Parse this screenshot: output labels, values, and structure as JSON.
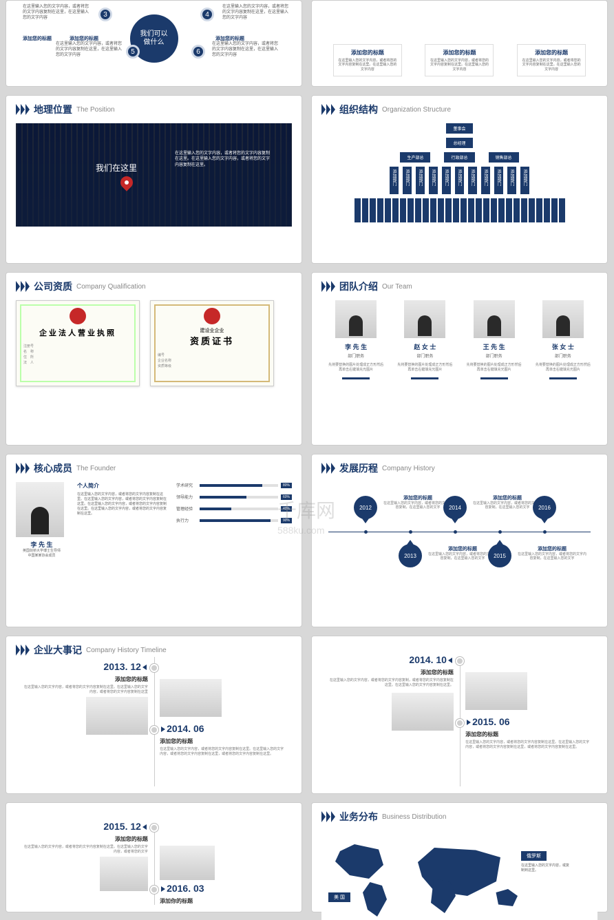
{
  "colors": {
    "primary": "#1b3a6b",
    "text": "#555",
    "muted": "#888",
    "bg": "#ffffff"
  },
  "watermark": {
    "main": "千库网",
    "sub": "588ku.com"
  },
  "s1": {
    "center": "我们可以\n做什么",
    "items": [
      {
        "n": "3",
        "title": "添加您的标题",
        "desc": "在这里输入您的文字内容，或者将您的文字内容复制在这里，在这里输入您的文字内容"
      },
      {
        "n": "4",
        "title": "",
        "desc": "在这里输入您的文字内容，或者将您的文字内容复制在这里，在这里输入您的文字内容"
      },
      {
        "n": "5",
        "title": "添加您的标题",
        "desc": "在这里输入您的文字内容，或者将您的文字内容复制在这里，在这里输入您的文字内容"
      },
      {
        "n": "6",
        "title": "添加您的标题",
        "desc": "在这里输入您的文字内容，或者将您的文字内容复制在这里，在这里输入您的文字内容"
      }
    ]
  },
  "s2": {
    "cards": [
      {
        "title": "添加您的标题",
        "desc": "在这里输入您的文字内容，或者将您的文字内容复制在这里。在这里输入您的文字内容"
      },
      {
        "title": "添加您的标题",
        "desc": "在这里输入您的文字内容，或者将您的文字内容复制在这里。在这里输入您的文字内容"
      },
      {
        "title": "添加您的标题",
        "desc": "在这里输入您的文字内容，或者将您的文字内容复制在这里。在这里输入您的文字内容"
      }
    ]
  },
  "s3": {
    "cn": "地理位置",
    "en": "The Position",
    "label": "我们在这里",
    "desc": "在这里输入您的文字内容，或者将您的文字内容复制在这里。在这里输入您的文字内容，或者将您的文字内容复制在这里。"
  },
  "s4": {
    "cn": "组织结构",
    "en": "Organization Structure",
    "top": "董事会",
    "l2": "总经理",
    "l3": [
      "生产部总",
      "行政部总",
      "销售部总"
    ],
    "dept": "添加部门"
  },
  "s5": {
    "cn": "公司资质",
    "en": "Company Qualification",
    "cert1": "企业法人营业执照",
    "cert2": "资质证书"
  },
  "s6": {
    "cn": "团队介绍",
    "en": "Our Team",
    "members": [
      {
        "name": "李 先 生",
        "role": "部门职务",
        "desc": "先将要替换的图片处理成正方形然后再单击右键填充光图片"
      },
      {
        "name": "赵 女 士",
        "role": "部门职务",
        "desc": "先将要替换的图片处理成正方形然后再单击右键填充光图片"
      },
      {
        "name": "王 先 生",
        "role": "部门职务",
        "desc": "先将要替换的图片处理成正方形然后再单击右键填充光图片"
      },
      {
        "name": "张 女 士",
        "role": "部门职务",
        "desc": "先将要替换的图片处理成正方形然后再单击右键填充光图片"
      }
    ]
  },
  "s7": {
    "cn": "核心成员",
    "en": "The Founder",
    "name": "李 先 生",
    "edu": "英国剑桥大学博士生导师\n中国某某协会成员",
    "bio_title": "个人简介",
    "bio": "在这里输入您的文字内容，或者将您的文字内容复制在这里。在这里输入您的文字内容，或者将您的文字内容复制在这里。在这里输入您的文字内容，或者将您的文字内容复制在这里。在这里输入您的文字内容，或者将您的文字内容复制在这里。",
    "skills": [
      {
        "label": "学术研究",
        "val": 80
      },
      {
        "label": "领导能力",
        "val": 60
      },
      {
        "label": "管理经验",
        "val": 40
      },
      {
        "label": "执行力",
        "val": 90
      }
    ]
  },
  "s8": {
    "cn": "发展历程",
    "en": "Company History",
    "years": [
      "2012",
      "2013",
      "2014",
      "2015",
      "2016"
    ],
    "ev_title": "添加您的标题",
    "ev_desc": "在这里输入您的文字内容，或者将您的文字内容复制，在这里输入您的文字"
  },
  "s9": {
    "cn": "企业大事记",
    "en": "Company History Timeline",
    "events": [
      {
        "date": "2013. 12",
        "title": "添加您的标题",
        "side": "left",
        "desc": "在这里输入您的文字内容，或者将您的文字内容复制在这里。在这里输入您的文字内容，或者将您的文字内容复制在这里"
      },
      {
        "date": "2014. 06",
        "title": "添加您的标题",
        "side": "right",
        "desc": "在这里输入您的文字内容，或者将您的文字内容复制在这里。在这里输入您的文字内容，或者将您的文字内容复制在这里，或者将您的文字内容复制在这里。"
      }
    ]
  },
  "s10": {
    "events": [
      {
        "date": "2014. 10",
        "title": "添加您的标题",
        "side": "left",
        "desc": "在这里输入您的文字内容，或者将您的文字内容复制，或者将您的文字内容复制在这里。在这里输入您的文字内容复制在这里。"
      },
      {
        "date": "2015. 06",
        "title": "添加您的标题",
        "side": "right",
        "desc": "在这里输入您的文字内容，或者将您的文字内容复制在这里。在这里输入您的文字内容，或者将您的文字内容复制在这里，或者将您的文字内容复制在这里。"
      }
    ]
  },
  "s11": {
    "events": [
      {
        "date": "2015. 12",
        "title": "添加您的标题",
        "side": "left",
        "desc": "在这里输入您的文字内容，或者将您的文字内容复制在这里。在这里输入您的文字内容，或者将您的文字"
      },
      {
        "date": "2016. 03",
        "title": "添加你的标题",
        "side": "right",
        "desc": ""
      }
    ]
  },
  "s12": {
    "cn": "业务分布",
    "en": "Business Distribution",
    "regions": [
      {
        "name": "俄罗斯"
      },
      {
        "name": "美 国"
      }
    ],
    "desc": "在这里输入您的文字内容，或复制到这里。"
  }
}
